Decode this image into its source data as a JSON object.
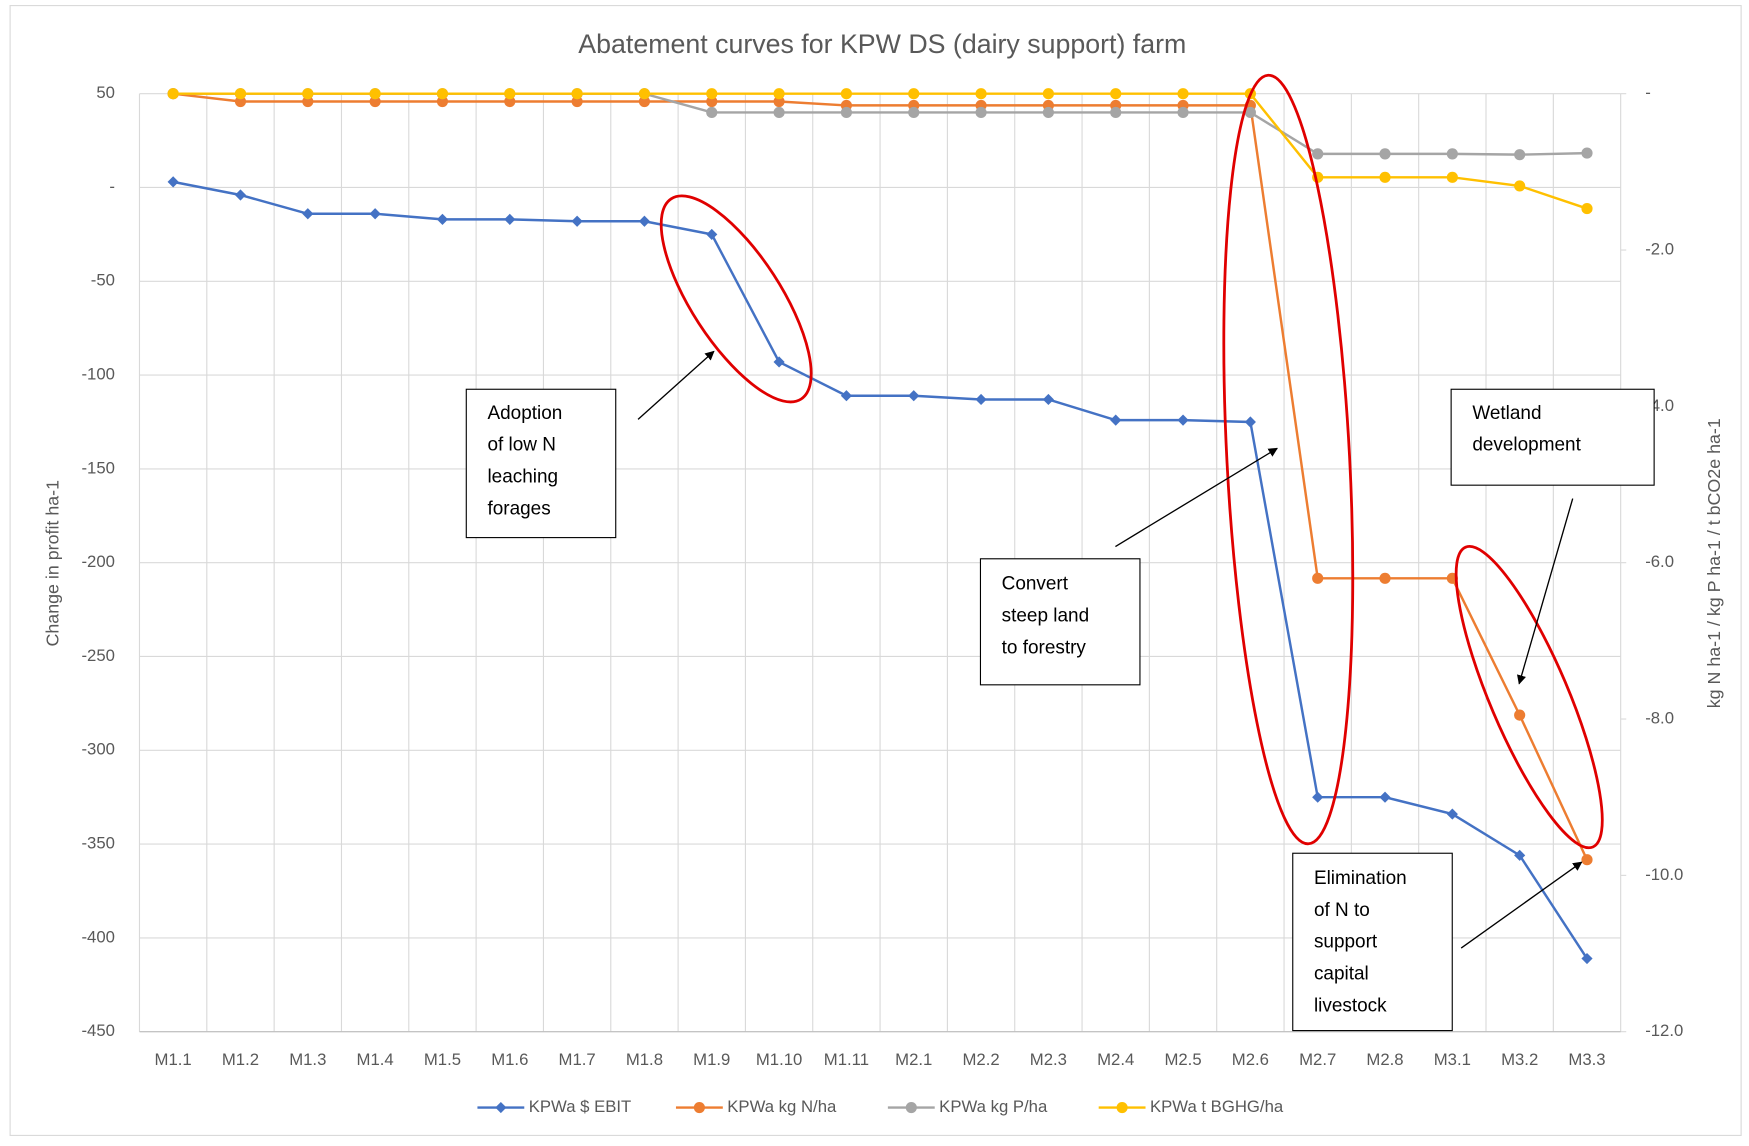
{
  "chart_data": {
    "type": "line",
    "title": "Abatement curves for KPW DS (dairy support) farm",
    "y_label": "Change in profit ha-1",
    "y2_label": "kg N ha-1 / kg P ha-1 / t bCO2e ha-1",
    "categories": [
      "M1.1",
      "M1.2",
      "M1.3",
      "M1.4",
      "M1.5",
      "M1.6",
      "M1.7",
      "M1.8",
      "M1.9",
      "M1.10",
      "M1.11",
      "M2.1",
      "M2.2",
      "M2.3",
      "M2.4",
      "M2.5",
      "M2.6",
      "M2.7",
      "M2.8",
      "M3.1",
      "M3.2",
      "M3.3"
    ],
    "ylim": [
      -450,
      50
    ],
    "yticks": [
      50,
      {
        "value": 0,
        "label": "-"
      },
      -50,
      -100,
      -150,
      -200,
      -250,
      -300,
      -350,
      -400,
      -450
    ],
    "y2lim": [
      -12,
      0
    ],
    "y2ticks": [
      {
        "value": 0,
        "label": "-"
      },
      {
        "value": -2,
        "label": "-2.0"
      },
      {
        "value": -4,
        "label": "-4.0"
      },
      {
        "value": -6,
        "label": "-6.0"
      },
      {
        "value": -8,
        "label": "-8.0"
      },
      {
        "value": -10,
        "label": "-10.0"
      },
      {
        "value": -12,
        "label": "-12.0"
      }
    ],
    "grid": true,
    "legend": "bottom",
    "series": [
      {
        "name": "KPWa $ EBIT",
        "color": "#4472c4",
        "marker": "diamond",
        "values": [
          3,
          -4,
          -14,
          -14,
          -17,
          -17,
          -18,
          -18,
          -25,
          -93,
          -111,
          -111,
          -113,
          -113,
          -124,
          -124,
          -125,
          -325,
          -325,
          -334,
          -356,
          -411
        ]
      },
      {
        "name": "KPWa kg N/ha",
        "color": "#ed7d31",
        "marker": "circle",
        "axis": "y2",
        "values": [
          0,
          -0.1,
          -0.1,
          -0.1,
          -0.1,
          -0.1,
          -0.1,
          -0.1,
          -0.1,
          -0.1,
          -0.15,
          -0.15,
          -0.15,
          -0.15,
          -0.15,
          -0.15,
          -0.15,
          -6.2,
          -6.2,
          -6.2,
          -7.95,
          -9.8
        ]
      },
      {
        "name": "KPWa kg P/ha",
        "color": "#a5a5a5",
        "marker": "circle",
        "axis": "y2",
        "values": [
          0,
          0,
          0,
          0,
          0,
          0,
          0,
          0,
          -0.24,
          -0.24,
          -0.24,
          -0.24,
          -0.24,
          -0.24,
          -0.24,
          -0.24,
          -0.24,
          -0.77,
          -0.77,
          -0.77,
          -0.78,
          -0.76
        ]
      },
      {
        "name": "KPWa t BGHG/ha",
        "color": "#ffc000",
        "marker": "circle",
        "axis": "y2",
        "values": [
          0,
          0,
          0,
          0,
          0,
          0,
          0,
          0,
          0,
          0,
          0,
          0,
          0,
          0,
          0,
          0,
          0,
          -1.07,
          -1.07,
          -1.07,
          -1.18,
          -1.47
        ]
      }
    ],
    "annotations": [
      {
        "lines": [
          "Adoption",
          "of low N",
          "leaching",
          "forages"
        ]
      },
      {
        "lines": [
          "Convert",
          "steep land",
          "to forestry"
        ]
      },
      {
        "lines": [
          "Wetland",
          "development"
        ]
      },
      {
        "lines": [
          "Elimination",
          "of N to",
          "support",
          "capital",
          "livestock"
        ]
      }
    ]
  }
}
